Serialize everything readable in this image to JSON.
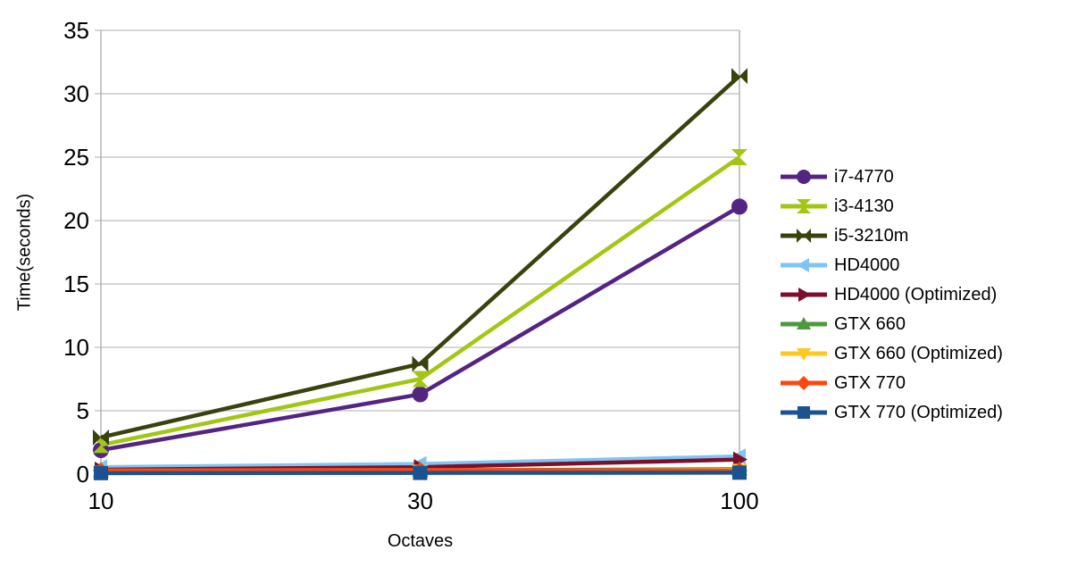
{
  "chart_data": {
    "type": "line",
    "title": "",
    "xlabel": "Octaves",
    "ylabel": "Time(seconds)",
    "categories": [
      "10",
      "30",
      "100"
    ],
    "ylim": [
      0,
      35
    ],
    "yticks": [
      0,
      5,
      10,
      15,
      20,
      25,
      30,
      35
    ],
    "grid": true,
    "legend_position": "right",
    "axis_color": "#b3b3b3",
    "grid_color": "#c8c8c8",
    "text_color": "#000000",
    "background_color": "#ffffff",
    "series": [
      {
        "name": "i7-4770",
        "marker": "circle",
        "color": "#542482",
        "values": [
          1.9,
          6.3,
          21.1
        ]
      },
      {
        "name": "i3-4130",
        "marker": "hourglass",
        "color": "#a3c615",
        "values": [
          2.3,
          7.5,
          25.0
        ]
      },
      {
        "name": "i5-3210m",
        "marker": "bowtie",
        "color": "#39420d",
        "values": [
          2.9,
          8.7,
          31.4
        ]
      },
      {
        "name": "HD4000",
        "marker": "triangle-left",
        "color": "#7fc5f3",
        "values": [
          0.55,
          0.8,
          1.4
        ]
      },
      {
        "name": "HD4000 (Optimized)",
        "marker": "triangle-right",
        "color": "#7c102a",
        "values": [
          0.35,
          0.55,
          1.15
        ]
      },
      {
        "name": "GTX 660",
        "marker": "triangle-up",
        "color": "#4d9a3e",
        "values": [
          0.25,
          0.3,
          0.4
        ]
      },
      {
        "name": "GTX 660 (Optimized)",
        "marker": "triangle-down",
        "color": "#fcc821",
        "values": [
          0.18,
          0.25,
          0.33
        ]
      },
      {
        "name": "GTX 770",
        "marker": "diamond",
        "color": "#fb470f",
        "values": [
          0.3,
          0.33,
          0.28
        ]
      },
      {
        "name": "GTX 770 (Optimized)",
        "marker": "square",
        "color": "#1b5391",
        "values": [
          0.08,
          0.1,
          0.12
        ]
      }
    ]
  }
}
